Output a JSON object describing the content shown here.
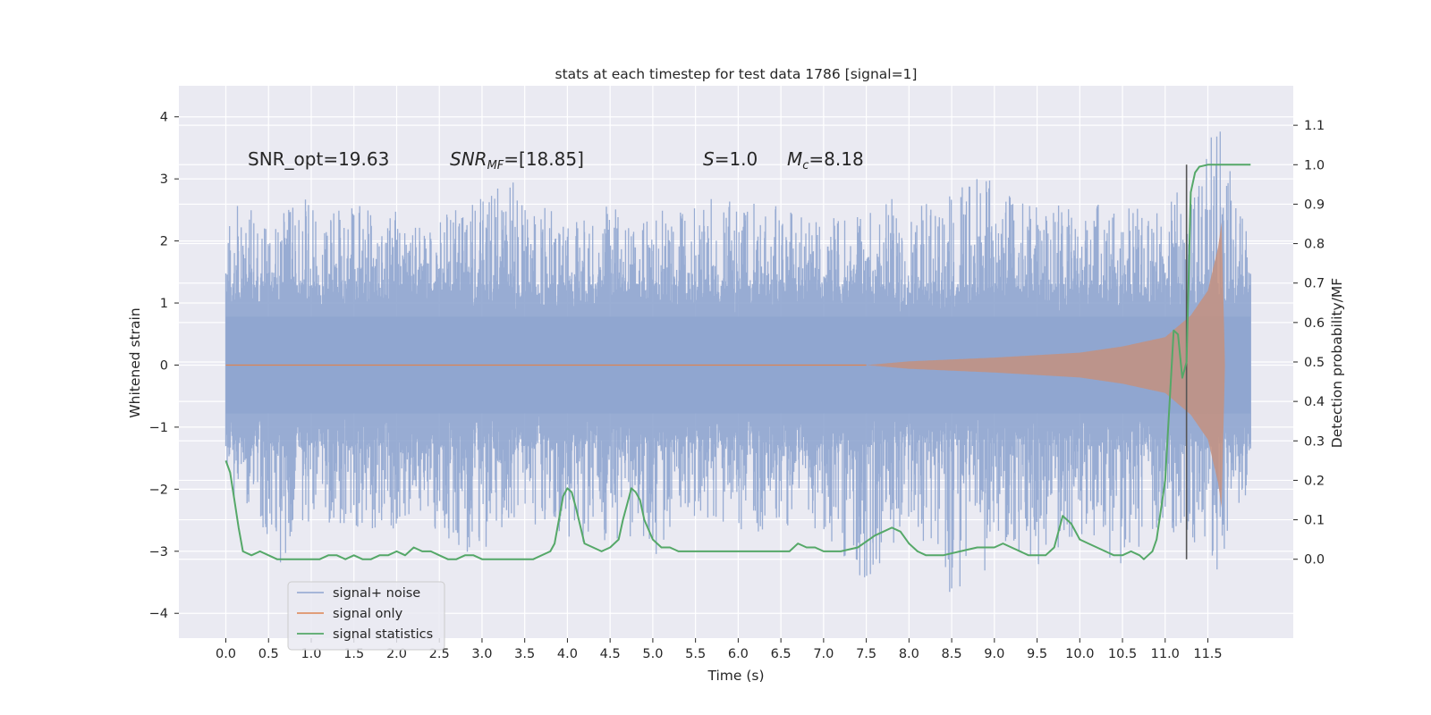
{
  "chart_data": {
    "type": "line",
    "title": "stats at each timestep for test data 1786 [signal=1]",
    "xlabel": "Time (s)",
    "ylabel": "Whitened strain",
    "y2label": "Detection probability/MF",
    "xlim": [
      -0.55,
      12.5
    ],
    "ylim": [
      -4.4,
      4.5
    ],
    "y2lim": [
      -0.2,
      1.2
    ],
    "xticks": [
      "0.0",
      "0.5",
      "1.0",
      "1.5",
      "2.0",
      "2.5",
      "3.0",
      "3.5",
      "4.0",
      "4.5",
      "5.0",
      "5.5",
      "6.0",
      "6.5",
      "7.0",
      "7.5",
      "8.0",
      "8.5",
      "9.0",
      "9.5",
      "10.0",
      "10.5",
      "11.0",
      "11.5"
    ],
    "yticks": [
      "4",
      "3",
      "2",
      "1",
      "0",
      "−1",
      "−2",
      "−3",
      "−4"
    ],
    "y2ticks": [
      "1.1",
      "1.0",
      "0.9",
      "0.8",
      "0.7",
      "0.6",
      "0.5",
      "0.4",
      "0.3",
      "0.2",
      "0.1",
      "0.0"
    ],
    "grid": true,
    "legend_position": "lower-left",
    "annotations": {
      "snr_opt": "SNR_opt=19.63",
      "snr_mf_base": "SNR",
      "snr_mf_sub": "MF",
      "snr_mf_value": "=[18.85]",
      "s_symbol": "S",
      "s_value": "=1.0",
      "mc_base": "M",
      "mc_sub": "c",
      "mc_value": "=8.18"
    },
    "vertical_line": {
      "x": 11.25,
      "y2_from": 0.0,
      "y2_to": 1.0
    },
    "series": [
      {
        "name": "signal+ noise",
        "color": "#8fa5cf",
        "kind": "noise_envelope",
        "x_range": [
          0.0,
          12.0
        ],
        "core_band": [
          -1.3,
          1.3
        ],
        "peaks_upper": [
          [
            0.0,
            2.0
          ],
          [
            0.1,
            2.8
          ],
          [
            0.3,
            2.5
          ],
          [
            0.6,
            2.5
          ],
          [
            0.9,
            2.7
          ],
          [
            1.3,
            2.5
          ],
          [
            1.6,
            2.6
          ],
          [
            2.0,
            2.5
          ],
          [
            2.3,
            2.3
          ],
          [
            2.7,
            2.5
          ],
          [
            3.0,
            2.7
          ],
          [
            3.35,
            3.0
          ],
          [
            3.6,
            2.6
          ],
          [
            4.0,
            2.4
          ],
          [
            4.5,
            2.6
          ],
          [
            4.9,
            2.4
          ],
          [
            5.3,
            2.6
          ],
          [
            5.8,
            2.7
          ],
          [
            6.3,
            2.6
          ],
          [
            6.8,
            2.5
          ],
          [
            7.3,
            2.4
          ],
          [
            7.8,
            2.7
          ],
          [
            8.3,
            2.6
          ],
          [
            8.85,
            3.2
          ],
          [
            9.2,
            2.7
          ],
          [
            9.6,
            2.5
          ],
          [
            10.0,
            2.7
          ],
          [
            10.4,
            2.5
          ],
          [
            10.8,
            2.6
          ],
          [
            11.3,
            2.9
          ],
          [
            11.6,
            4.1
          ],
          [
            11.9,
            2.4
          ]
        ],
        "peaks_lower": [
          [
            0.0,
            -2.0
          ],
          [
            0.2,
            -2.4
          ],
          [
            0.6,
            -3.3
          ],
          [
            1.0,
            -2.5
          ],
          [
            1.5,
            -2.6
          ],
          [
            1.9,
            -2.7
          ],
          [
            2.3,
            -2.5
          ],
          [
            2.9,
            -3.1
          ],
          [
            3.3,
            -2.7
          ],
          [
            3.8,
            -2.6
          ],
          [
            4.2,
            -2.9
          ],
          [
            4.7,
            -2.9
          ],
          [
            5.0,
            -3.1
          ],
          [
            5.6,
            -2.5
          ],
          [
            6.2,
            -2.7
          ],
          [
            6.8,
            -2.6
          ],
          [
            7.5,
            -3.5
          ],
          [
            8.0,
            -2.6
          ],
          [
            8.6,
            -4.0
          ],
          [
            9.1,
            -2.8
          ],
          [
            9.5,
            -3.3
          ],
          [
            10.0,
            -2.7
          ],
          [
            10.5,
            -3.3
          ],
          [
            11.0,
            -2.6
          ],
          [
            11.4,
            -3.0
          ],
          [
            11.65,
            -3.4
          ],
          [
            11.9,
            -2.2
          ]
        ]
      },
      {
        "name": "signal only",
        "color": "#dd8452",
        "kind": "chirp",
        "x_range": [
          7.5,
          11.7
        ],
        "amplitude_profile": [
          [
            7.5,
            0.0
          ],
          [
            8.0,
            0.06
          ],
          [
            9.0,
            0.12
          ],
          [
            10.0,
            0.2
          ],
          [
            10.5,
            0.3
          ],
          [
            11.0,
            0.45
          ],
          [
            11.3,
            0.8
          ],
          [
            11.5,
            1.2
          ],
          [
            11.62,
            1.9
          ],
          [
            11.66,
            2.3
          ],
          [
            11.7,
            0.0
          ]
        ]
      },
      {
        "name": "signal statistics",
        "color": "#55a868",
        "kind": "line",
        "axis": "y2",
        "x": [
          0.0,
          0.05,
          0.1,
          0.15,
          0.2,
          0.3,
          0.4,
          0.5,
          0.6,
          0.8,
          1.0,
          1.1,
          1.2,
          1.3,
          1.4,
          1.5,
          1.6,
          1.7,
          1.8,
          1.9,
          2.0,
          2.1,
          2.2,
          2.3,
          2.4,
          2.5,
          2.6,
          2.7,
          2.8,
          2.9,
          3.0,
          3.2,
          3.4,
          3.6,
          3.8,
          3.85,
          3.9,
          3.95,
          4.0,
          4.05,
          4.1,
          4.2,
          4.3,
          4.4,
          4.5,
          4.6,
          4.65,
          4.7,
          4.75,
          4.8,
          4.85,
          4.9,
          5.0,
          5.1,
          5.2,
          5.3,
          5.5,
          5.7,
          5.9,
          6.0,
          6.2,
          6.4,
          6.6,
          6.7,
          6.8,
          6.9,
          7.0,
          7.2,
          7.4,
          7.6,
          7.7,
          7.8,
          7.9,
          8.0,
          8.1,
          8.2,
          8.4,
          8.6,
          8.8,
          9.0,
          9.1,
          9.2,
          9.4,
          9.6,
          9.7,
          9.8,
          9.85,
          9.9,
          10.0,
          10.1,
          10.2,
          10.3,
          10.4,
          10.5,
          10.6,
          10.7,
          10.75,
          10.8,
          10.85,
          10.9,
          11.0,
          11.1,
          11.15,
          11.2,
          11.25,
          11.3,
          11.35,
          11.4,
          11.5,
          11.6,
          11.7,
          11.8,
          11.9,
          12.0
        ],
        "y": [
          0.25,
          0.22,
          0.15,
          0.08,
          0.02,
          0.01,
          0.02,
          0.01,
          0.0,
          0.0,
          0.0,
          0.0,
          0.01,
          0.01,
          0.0,
          0.01,
          0.0,
          0.0,
          0.01,
          0.01,
          0.02,
          0.01,
          0.03,
          0.02,
          0.02,
          0.01,
          0.0,
          0.0,
          0.01,
          0.01,
          0.0,
          0.0,
          0.0,
          0.0,
          0.02,
          0.04,
          0.1,
          0.16,
          0.18,
          0.17,
          0.13,
          0.04,
          0.03,
          0.02,
          0.03,
          0.05,
          0.1,
          0.14,
          0.18,
          0.17,
          0.15,
          0.1,
          0.05,
          0.03,
          0.03,
          0.02,
          0.02,
          0.02,
          0.02,
          0.02,
          0.02,
          0.02,
          0.02,
          0.04,
          0.03,
          0.03,
          0.02,
          0.02,
          0.03,
          0.06,
          0.07,
          0.08,
          0.07,
          0.04,
          0.02,
          0.01,
          0.01,
          0.02,
          0.03,
          0.03,
          0.04,
          0.03,
          0.01,
          0.01,
          0.03,
          0.11,
          0.1,
          0.09,
          0.05,
          0.04,
          0.03,
          0.02,
          0.01,
          0.01,
          0.02,
          0.01,
          0.0,
          0.01,
          0.02,
          0.05,
          0.2,
          0.58,
          0.57,
          0.46,
          0.5,
          0.93,
          0.98,
          0.995,
          1.0,
          1.0,
          1.0,
          1.0,
          1.0,
          1.0
        ]
      }
    ]
  }
}
